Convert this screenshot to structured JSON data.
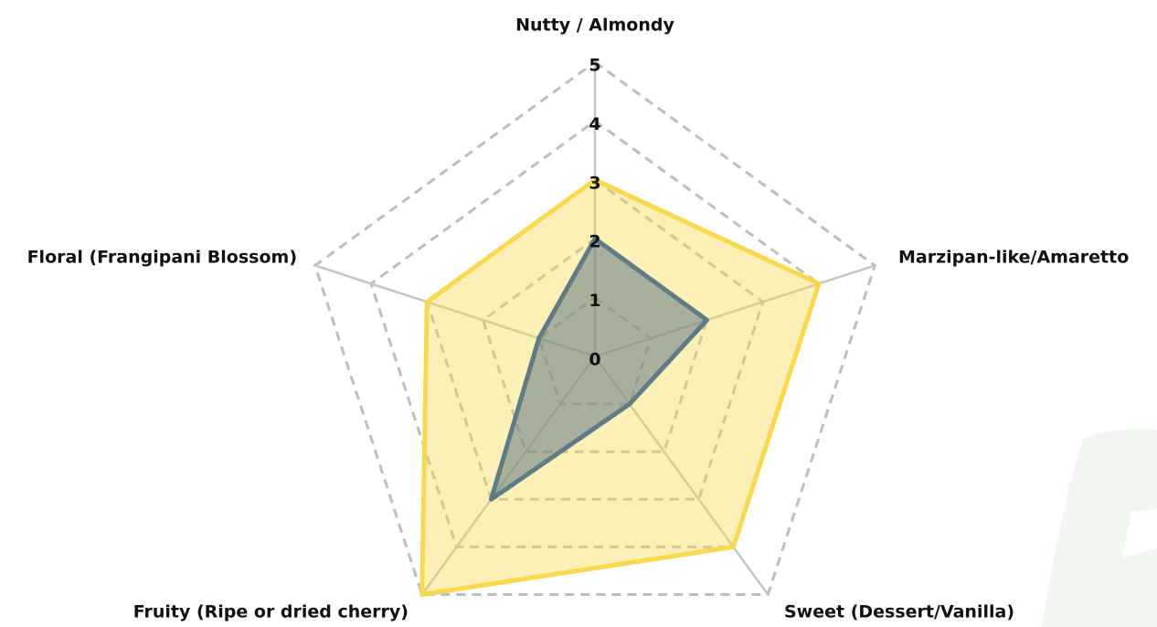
{
  "chart_data": {
    "type": "radar",
    "categories": [
      "Nutty / Almondy",
      "Marzipan-like/Amaretto",
      "Sweet (Dessert/Vanilla)",
      "Fruity (Ripe or dried cherry)",
      "Floral (Frangipani Blossom)"
    ],
    "series": [
      {
        "color": "#f9d94a",
        "values": [
          3,
          4,
          4,
          5,
          3
        ]
      },
      {
        "color": "#5e7c85",
        "values": [
          2,
          2,
          1,
          3,
          1
        ]
      }
    ],
    "rlim": [
      0,
      5
    ],
    "rticks": [
      0,
      1,
      2,
      3,
      4,
      5
    ],
    "grid": true
  }
}
